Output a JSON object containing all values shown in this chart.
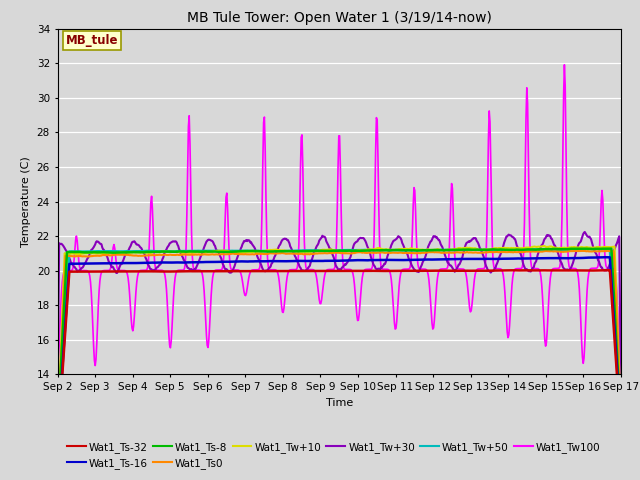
{
  "title": "MB Tule Tower: Open Water 1 (3/19/14-now)",
  "xlabel": "Time",
  "ylabel": "Temperature (C)",
  "ylim": [
    14,
    34
  ],
  "yticks": [
    14,
    16,
    18,
    20,
    22,
    24,
    26,
    28,
    30,
    32,
    34
  ],
  "xlim_days": [
    0,
    15
  ],
  "xtick_labels": [
    "Sep 2",
    "Sep 3",
    "Sep 4",
    "Sep 5",
    "Sep 6",
    "Sep 7",
    "Sep 8",
    "Sep 9",
    "Sep 10",
    "Sep 11",
    "Sep 12",
    "Sep 13",
    "Sep 14",
    "Sep 15",
    "Sep 16",
    "Sep 17"
  ],
  "background_color": "#d8d8d8",
  "plot_bg_color": "#d8d8d8",
  "legend_box_color": "#ffffcc",
  "legend_box_edge": "#999900",
  "annotation_text": "MB_tule",
  "annotation_color": "#880000",
  "series": [
    {
      "label": "Wat1_Ts-32",
      "color": "#cc0000"
    },
    {
      "label": "Wat1_Ts-16",
      "color": "#0000cc"
    },
    {
      "label": "Wat1_Ts-8",
      "color": "#00bb00"
    },
    {
      "label": "Wat1_Ts0",
      "color": "#ff8800"
    },
    {
      "label": "Wat1_Tw+10",
      "color": "#dddd00"
    },
    {
      "label": "Wat1_Tw+30",
      "color": "#8800bb"
    },
    {
      "label": "Wat1_Tw+50",
      "color": "#00bbbb"
    },
    {
      "label": "Wat1_Tw100",
      "color": "#ff00ff"
    }
  ]
}
